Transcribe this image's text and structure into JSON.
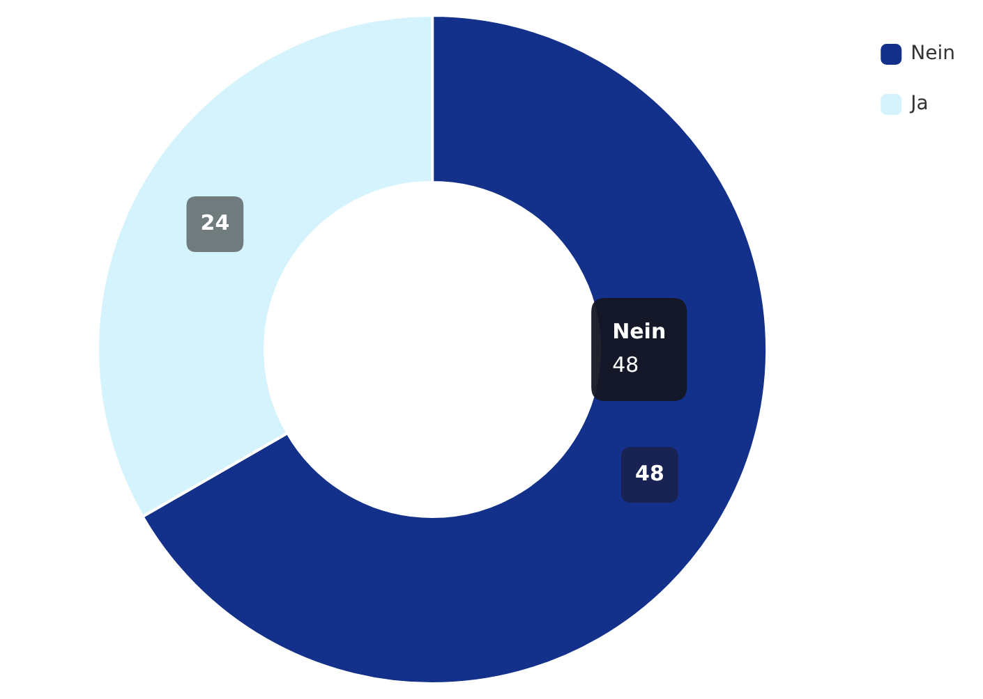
{
  "chart_data": {
    "type": "donut",
    "categories": [
      "Nein",
      "Ja"
    ],
    "values": [
      48,
      24
    ],
    "colors": [
      "#13318a",
      "#d4f3fc"
    ],
    "data_labels": true,
    "legend": "top right",
    "annotations": [
      "Nein\n48"
    ]
  }
}
